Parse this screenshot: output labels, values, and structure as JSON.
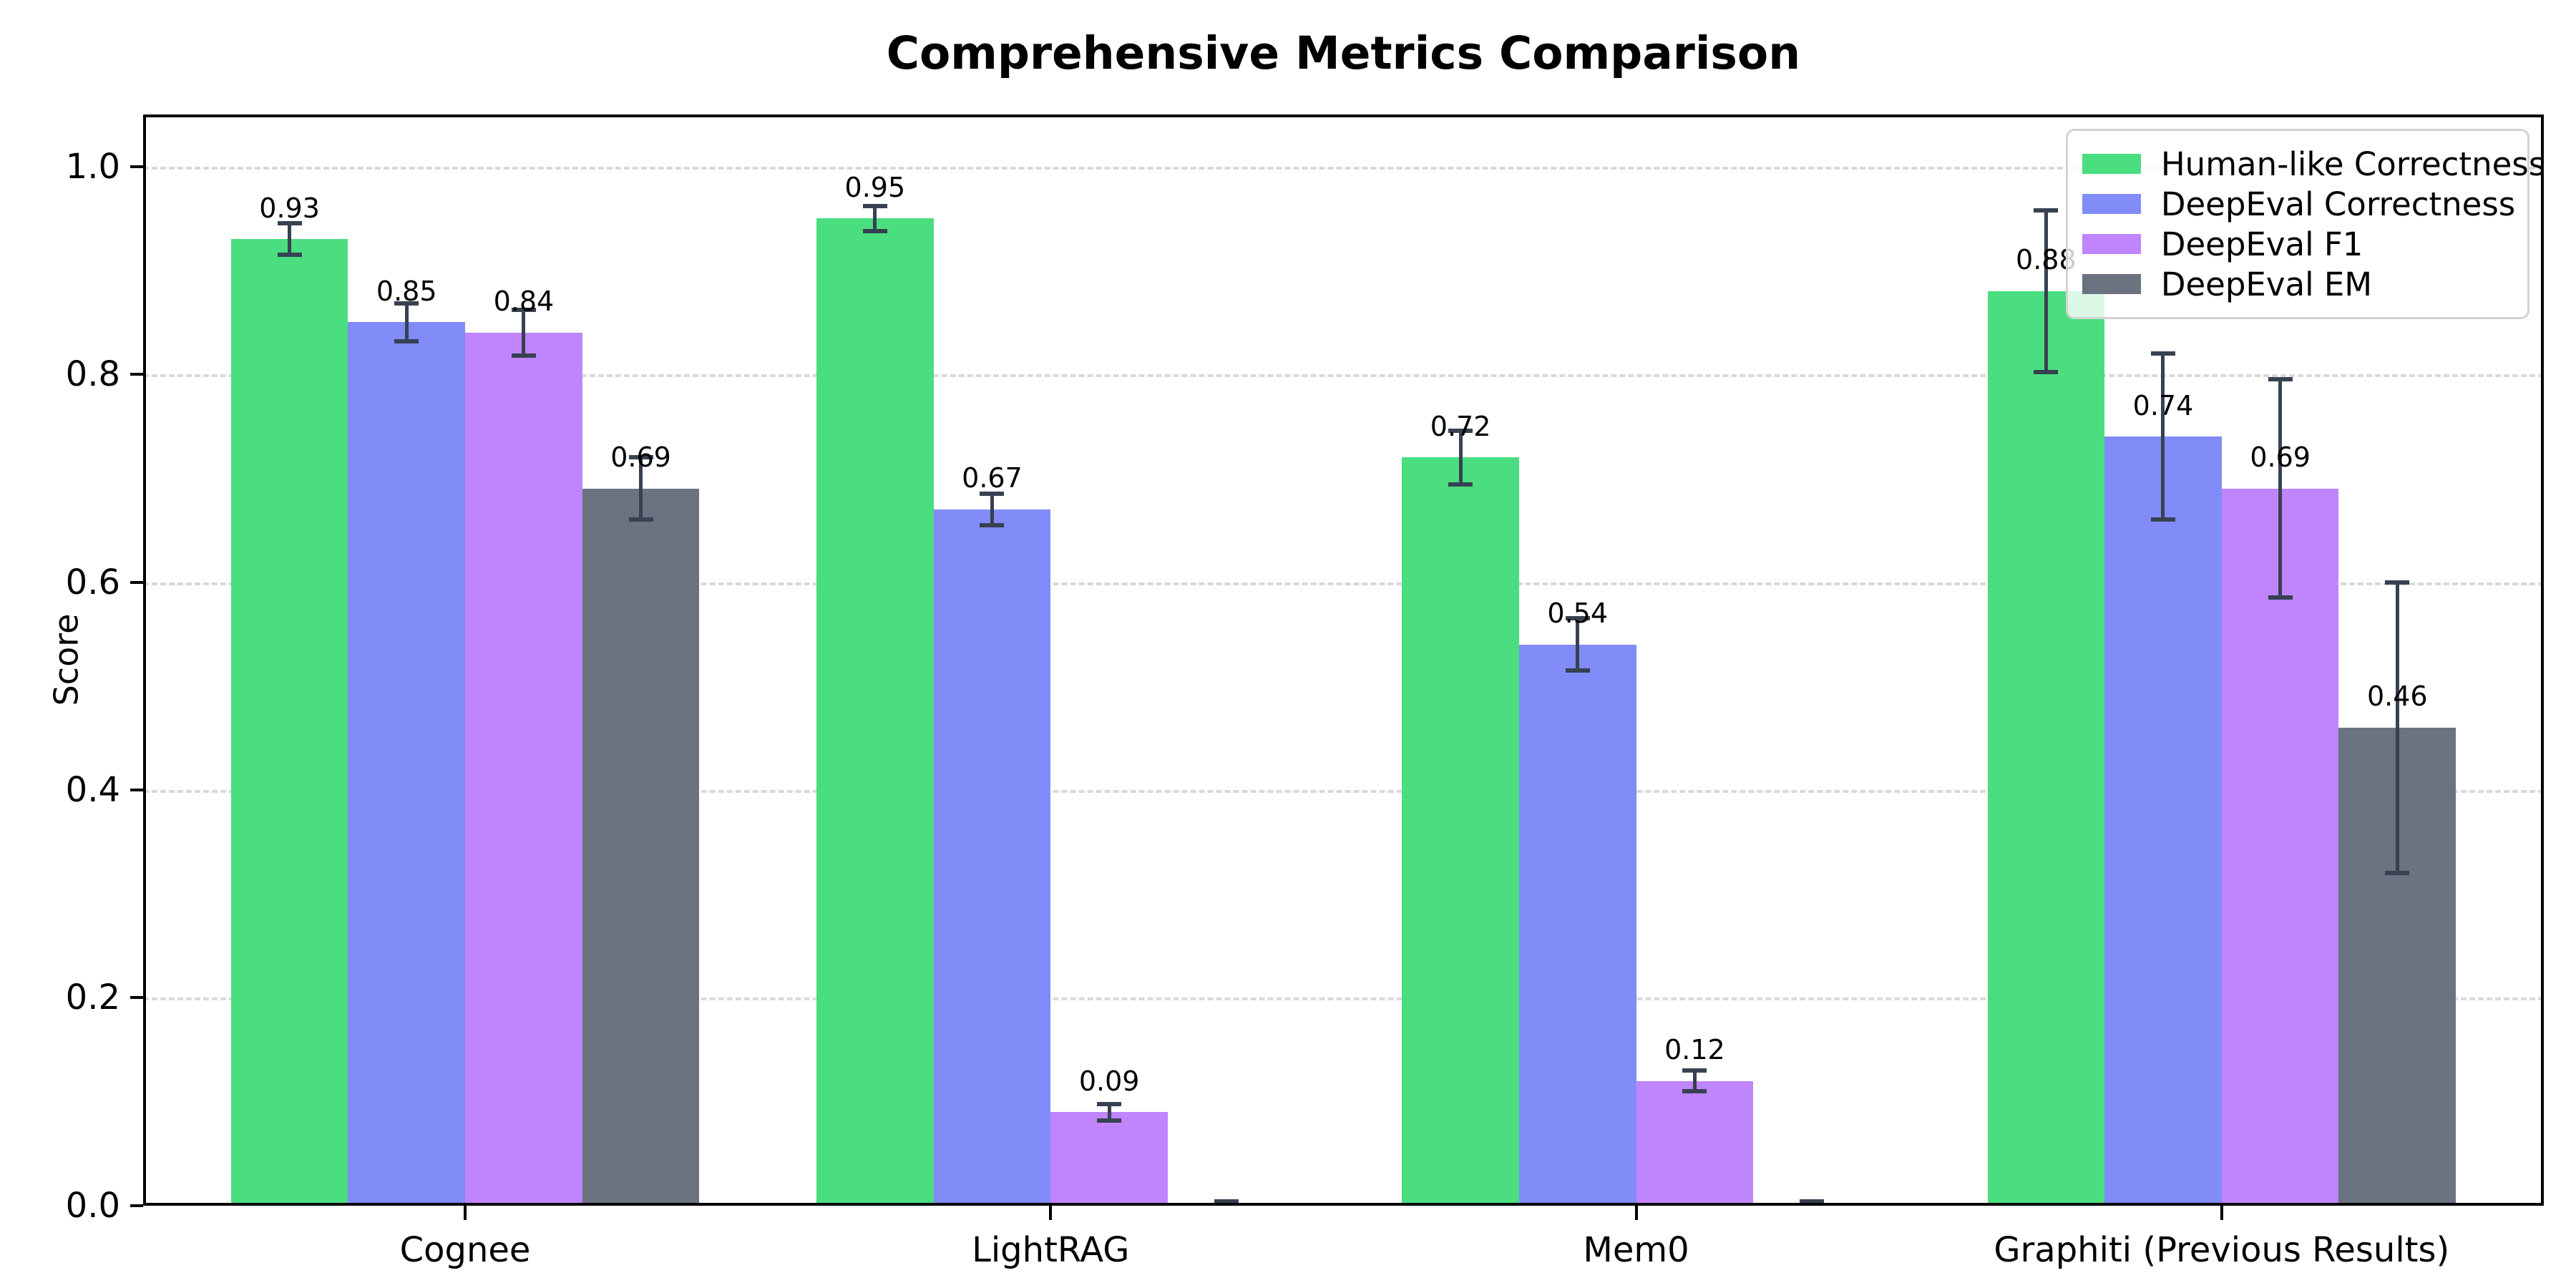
{
  "chart_data": {
    "type": "bar",
    "title": "Comprehensive Metrics Comparison",
    "xlabel": "",
    "ylabel": "Score",
    "categories": [
      "Cognee",
      "LightRAG",
      "Mem0",
      "Graphiti (Previous Results)"
    ],
    "series": [
      {
        "name": "Human-like Correctness",
        "color": "#4ade80",
        "values": [
          0.93,
          0.95,
          0.72,
          0.88
        ],
        "errors": [
          0.015,
          0.012,
          0.026,
          0.078
        ],
        "bar_labels": [
          "0.93",
          "0.95",
          "0.72",
          "0.88"
        ]
      },
      {
        "name": "DeepEval Correctness",
        "color": "#818cf8",
        "values": [
          0.85,
          0.67,
          0.54,
          0.74
        ],
        "errors": [
          0.018,
          0.015,
          0.025,
          0.08
        ],
        "bar_labels": [
          "0.85",
          "0.67",
          "0.54",
          "0.74"
        ]
      },
      {
        "name": "DeepEval F1",
        "color": "#c084fc",
        "values": [
          0.84,
          0.09,
          0.12,
          0.69
        ],
        "errors": [
          0.022,
          0.008,
          0.01,
          0.105
        ],
        "bar_labels": [
          "0.84",
          "0.09",
          "0.12",
          "0.69"
        ]
      },
      {
        "name": "DeepEval EM",
        "color": "#6b7280",
        "values": [
          0.69,
          0.0,
          0.0,
          0.46
        ],
        "errors": [
          0.03,
          0.004,
          0.004,
          0.14
        ],
        "bar_labels": [
          "0.69",
          null,
          null,
          "0.46"
        ]
      }
    ],
    "error_bar_color": "#374151",
    "grid_color": "#d9d9d9",
    "grid_style": "dashed horizontal",
    "legend_position": "upper right",
    "yticks": [
      "0.0",
      "0.2",
      "0.4",
      "0.6",
      "0.8",
      "1.0"
    ],
    "ytick_values": [
      0.0,
      0.2,
      0.4,
      0.6,
      0.8,
      1.0
    ],
    "ylim": [
      0,
      1.05
    ],
    "bar_width": 0.2,
    "xlim": [
      -0.55,
      3.55
    ],
    "value_label_offset": 0.03
  }
}
